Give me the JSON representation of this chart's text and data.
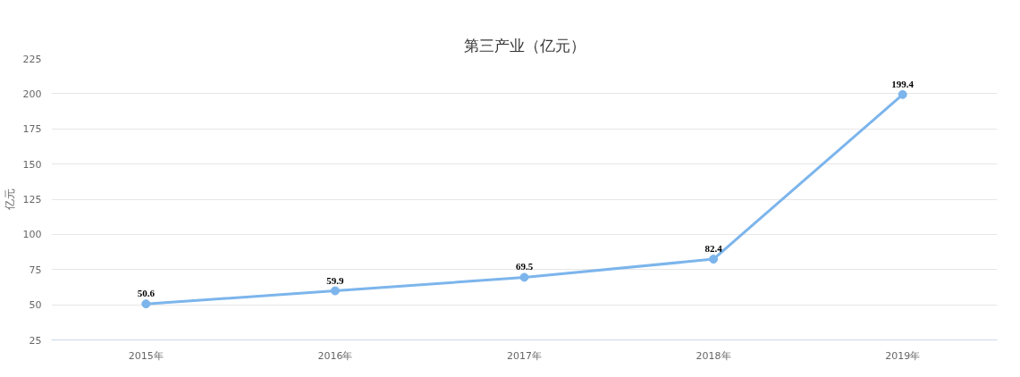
{
  "chart_data": {
    "type": "line",
    "title": "第三产业（亿元）",
    "ylabel": "亿元",
    "categories": [
      "2015年",
      "2016年",
      "2017年",
      "2018年",
      "2019年"
    ],
    "series": [
      {
        "color": "#7cb5ec",
        "values": [
          50.6,
          59.9,
          69.5,
          82.4,
          199.4
        ]
      }
    ],
    "ylim": [
      25,
      225
    ],
    "yticks": [
      25,
      50,
      75,
      100,
      125,
      150,
      175,
      200,
      225
    ],
    "grid": "y",
    "marker": "circle",
    "data_labels": true
  }
}
